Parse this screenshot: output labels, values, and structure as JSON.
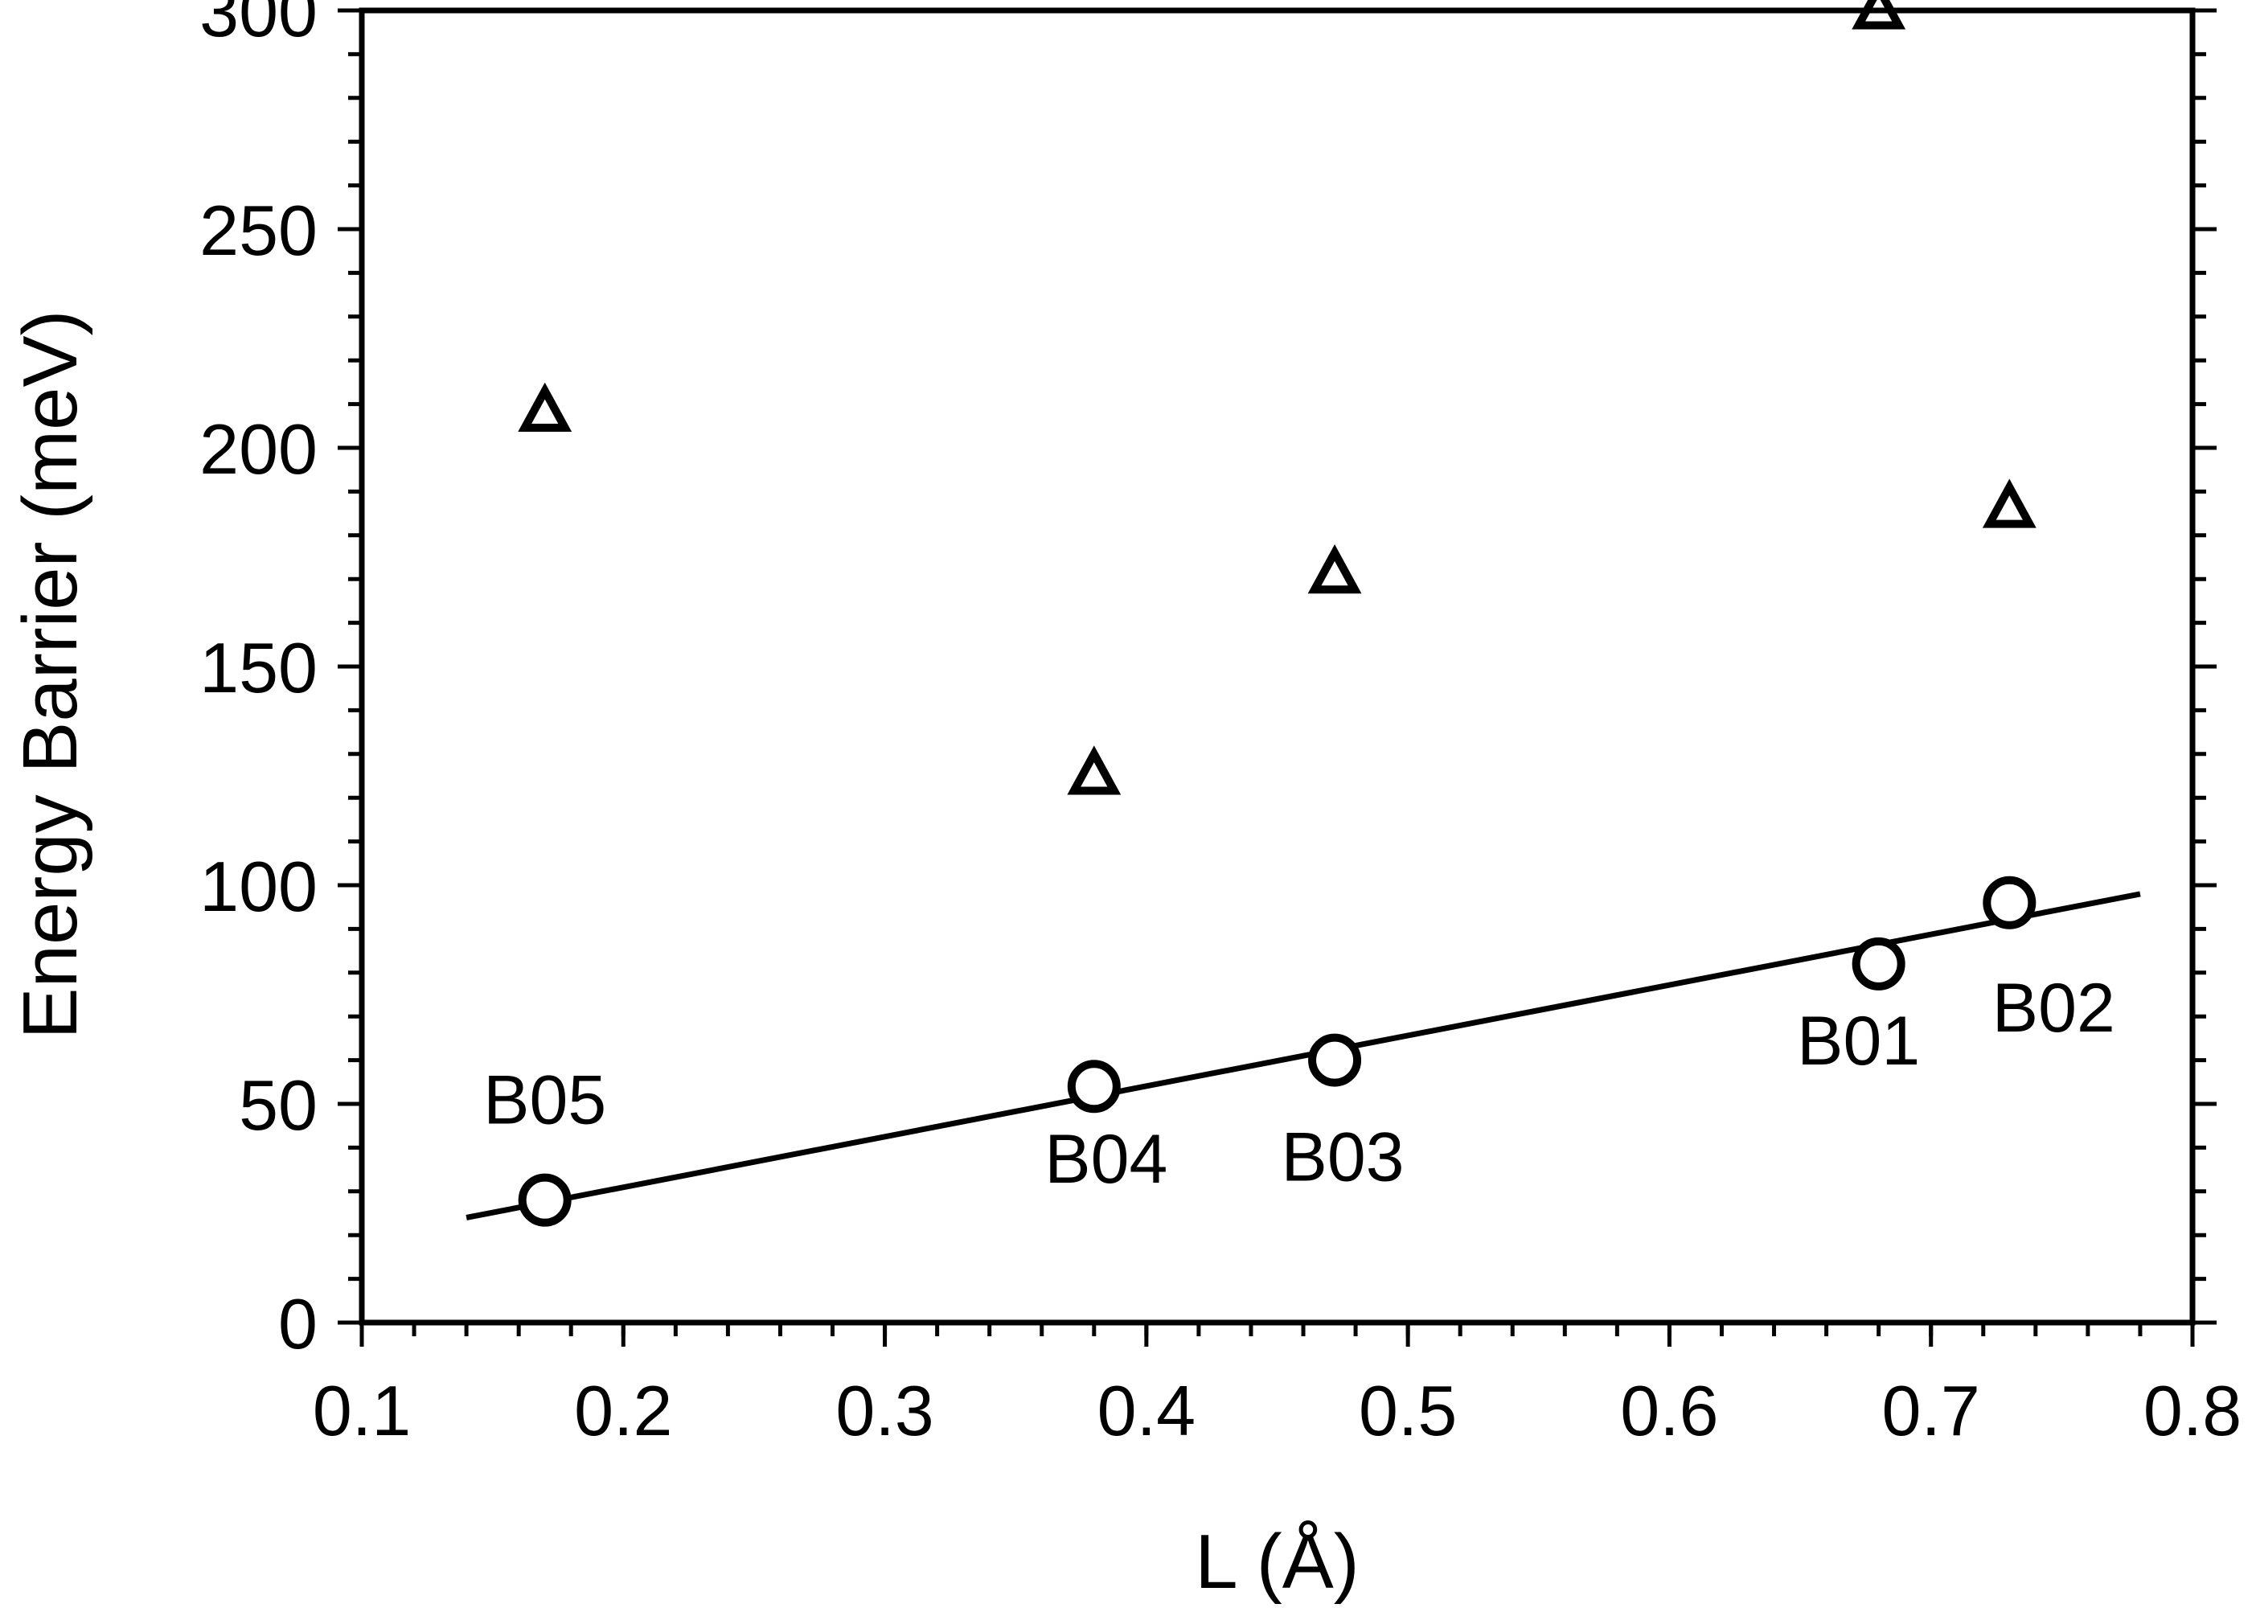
{
  "chart_data": {
    "type": "scatter",
    "title": "",
    "xlabel": "L (Å)",
    "ylabel": "Energy Barrier (meV)",
    "xlim": [
      0.1,
      0.8
    ],
    "ylim": [
      0,
      300
    ],
    "x_major_ticks": [
      0.1,
      0.2,
      0.3,
      0.4,
      0.5,
      0.6,
      0.7,
      0.8
    ],
    "x_tick_labels": [
      "0.1",
      "0.2",
      "0.3",
      "0.4",
      "0.5",
      "0.6",
      "0.7",
      "0.8"
    ],
    "x_minor_step": 0.02,
    "y_major_ticks": [
      0,
      50,
      100,
      150,
      200,
      250,
      300
    ],
    "y_tick_labels": [
      "0",
      "50",
      "100",
      "150",
      "200",
      "250",
      "300"
    ],
    "y_minor_step": 10,
    "grid": false,
    "legend": "none",
    "colors": {
      "ink": "#000000",
      "background": "#ffffff"
    },
    "series": [
      {
        "marker": "open-circle",
        "x": [
          0.17,
          0.38,
          0.472,
          0.68,
          0.73
        ],
        "y": [
          28,
          54,
          60,
          82,
          96
        ],
        "labels": [
          "B05",
          "B04",
          "B03",
          "B01",
          "B02"
        ]
      },
      {
        "marker": "open-triangle",
        "x": [
          0.17,
          0.38,
          0.472,
          0.68,
          0.73
        ],
        "y": [
          208,
          125,
          171,
          300,
          186
        ]
      }
    ],
    "fit_line": {
      "x": [
        0.14,
        0.78
      ],
      "y": [
        24,
        98
      ]
    }
  }
}
